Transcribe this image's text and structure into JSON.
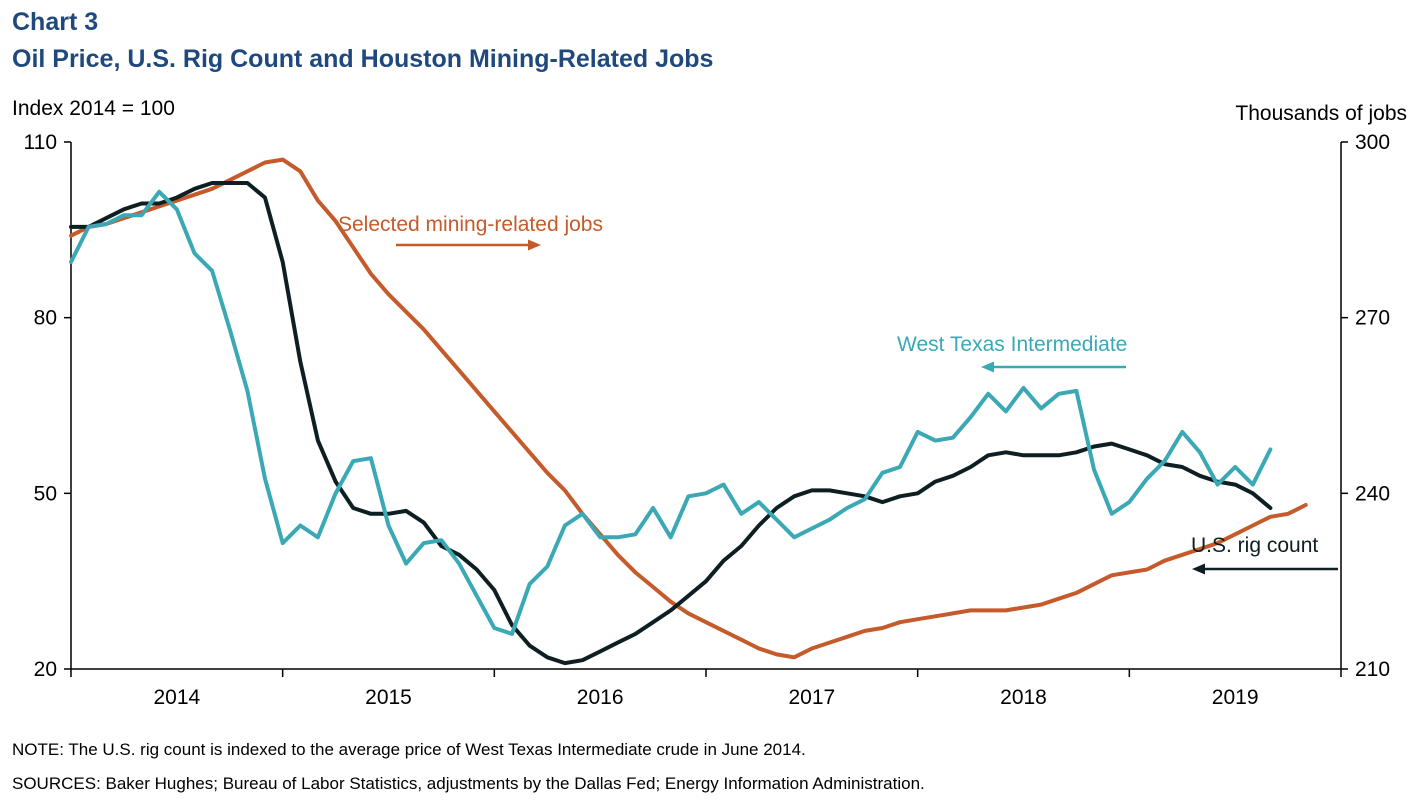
{
  "header": {
    "chart_number": "Chart 3",
    "title": "Oil Price, U.S. Rig Count and Houston Mining-Related Jobs"
  },
  "footer": {
    "note": "NOTE: The U.S. rig count is indexed to the average price of West Texas Intermediate crude in June 2014.",
    "sources": "SOURCES: Baker Hughes; Bureau of Labor Statistics, adjustments by the Dallas Fed; Energy Information Administration."
  },
  "colors": {
    "title": "#1f497d",
    "wti": "#3aa9b5",
    "rig": "#0d1f22",
    "jobs": "#c55a2a",
    "axis": "#000000"
  },
  "chart_data": {
    "type": "line",
    "grid": false,
    "x_axis": {
      "tick_labels": [
        "2014",
        "2015",
        "2016",
        "2017",
        "2018",
        "2019"
      ],
      "range": [
        "2014-01",
        "2019-12"
      ]
    },
    "y_axis_left": {
      "label": "Index 2014 = 100",
      "range": [
        20,
        110
      ],
      "ticks": [
        20,
        50,
        80,
        110
      ]
    },
    "y_axis_right": {
      "label": "Thousands of jobs",
      "range": [
        210,
        300
      ],
      "ticks": [
        210,
        240,
        270,
        300
      ]
    },
    "annotations": {
      "jobs": {
        "text": "Selected mining-related jobs",
        "arrow": "right"
      },
      "wti": {
        "text": "West Texas Intermediate",
        "arrow": "left"
      },
      "rig": {
        "text": "U.S. rig count",
        "arrow": "left"
      }
    },
    "series": [
      {
        "name": "West Texas Intermediate",
        "axis": "left",
        "start": "2014-01",
        "values": [
          89.5,
          95.5,
          96.0,
          97.5,
          97.5,
          101.5,
          98.5,
          91.0,
          88.0,
          78.0,
          67.5,
          52.5,
          41.5,
          44.5,
          42.5,
          50.0,
          55.5,
          56.0,
          44.5,
          38.0,
          41.5,
          42.0,
          38.0,
          32.5,
          27.0,
          26.0,
          34.5,
          37.5,
          44.5,
          46.5,
          42.5,
          42.5,
          43.0,
          47.5,
          42.5,
          49.5,
          50.0,
          51.5,
          46.5,
          48.5,
          45.5,
          42.5,
          44.0,
          45.5,
          47.5,
          49.0,
          53.5,
          54.5,
          60.5,
          59.0,
          59.5,
          63.0,
          67.0,
          64.0,
          68.0,
          64.5,
          67.0,
          67.5,
          54.0,
          46.5,
          48.5,
          52.5,
          55.5,
          60.5,
          57.0,
          51.5,
          54.5,
          51.5,
          57.5
        ]
      },
      {
        "name": "U.S. rig count",
        "axis": "left",
        "start": "2014-01",
        "values": [
          95.5,
          95.5,
          97.0,
          98.5,
          99.5,
          99.5,
          100.5,
          102.0,
          103.0,
          103.0,
          103.0,
          100.5,
          89.5,
          72.5,
          59.0,
          52.0,
          47.5,
          46.5,
          46.5,
          47.0,
          45.0,
          41.0,
          39.5,
          37.0,
          33.5,
          27.5,
          24.0,
          22.0,
          21.0,
          21.5,
          23.0,
          24.5,
          26.0,
          28.0,
          30.0,
          32.5,
          35.0,
          38.5,
          41.0,
          44.5,
          47.5,
          49.5,
          50.5,
          50.5,
          50.0,
          49.5,
          48.5,
          49.5,
          50.0,
          52.0,
          53.0,
          54.5,
          56.5,
          57.0,
          56.5,
          56.5,
          56.5,
          57.0,
          58.0,
          58.5,
          57.5,
          56.5,
          55.0,
          54.5,
          53.0,
          52.0,
          51.5,
          50.0,
          47.5
        ]
      },
      {
        "name": "Selected mining-related jobs",
        "axis": "right",
        "start": "2014-01",
        "values": [
          284.0,
          285.5,
          286.0,
          287.0,
          288.0,
          289.0,
          290.0,
          291.0,
          292.0,
          293.5,
          295.0,
          296.5,
          297.0,
          295.0,
          290.0,
          286.5,
          282.0,
          277.5,
          274.0,
          271.0,
          268.0,
          264.5,
          261.0,
          257.5,
          254.0,
          250.5,
          247.0,
          243.5,
          240.5,
          236.5,
          233.0,
          229.5,
          226.5,
          224.0,
          221.5,
          219.5,
          218.0,
          216.5,
          215.0,
          213.5,
          212.5,
          212.0,
          213.5,
          214.5,
          215.5,
          216.5,
          217.0,
          218.0,
          218.5,
          219.0,
          219.5,
          220.0,
          220.0,
          220.0,
          220.5,
          221.0,
          222.0,
          223.0,
          224.5,
          226.0,
          226.5,
          227.0,
          228.5,
          229.5,
          230.5,
          231.5,
          233.0,
          234.5,
          236.0,
          236.5,
          238.0
        ]
      }
    ]
  }
}
